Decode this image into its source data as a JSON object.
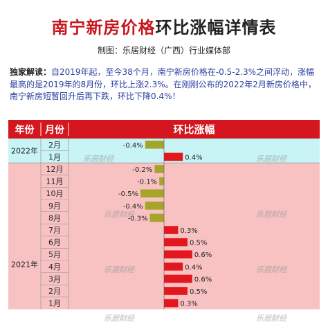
{
  "page": {
    "title_part1": "南宁新房价格",
    "title_part2": "环比涨幅详情表",
    "subtitle": "制图：乐居财经（广西）行业媒体部",
    "intro_label": "独家解读：",
    "intro_text_1": "自2019年起，至今38个月，南宁新房价格在-0.5-2.3%之间浮动，涨幅最高的是2019年的8月份，环比上涨2.3%。在刚刚公布的2022年2月新房价格中，南宁新房短暂回升后再下跌，环比下降0.4%！",
    "watermark": "乐居财经"
  },
  "colors": {
    "header_bg": "#d5161f",
    "band_2022": "#c9f4f6",
    "band_2021": "#f8c2c2",
    "positive": "#e3181e",
    "negative": "#a4a52a",
    "title_red": "#c8161d"
  },
  "chart_data": {
    "type": "bar",
    "orientation": "horizontal",
    "columns": [
      "年份",
      "月份",
      "环比涨幅"
    ],
    "groups": [
      {
        "year": "2022年",
        "months": [
          "2月",
          "1月"
        ],
        "values": [
          -0.4,
          0.4
        ],
        "labels": [
          "-0.4%",
          "0.4%"
        ]
      },
      {
        "year": "2021年",
        "months": [
          "12月",
          "11月",
          "10月",
          "9月",
          "8月",
          "7月",
          "6月",
          "5月",
          "4月",
          "3月",
          "2月",
          "1月"
        ],
        "values": [
          -0.2,
          -0.1,
          -0.5,
          -0.4,
          -0.3,
          0.3,
          0.5,
          0.6,
          0.4,
          0.6,
          0.5,
          0.3
        ],
        "labels": [
          "-0.2%",
          "-0.1%",
          "-0.5%",
          "-0.4%",
          "-0.3%",
          "0.3%",
          "0.5%",
          "0.6%",
          "0.4%",
          "0.6%",
          "0.5%",
          "0.3%"
        ]
      }
    ],
    "grid": true
  }
}
